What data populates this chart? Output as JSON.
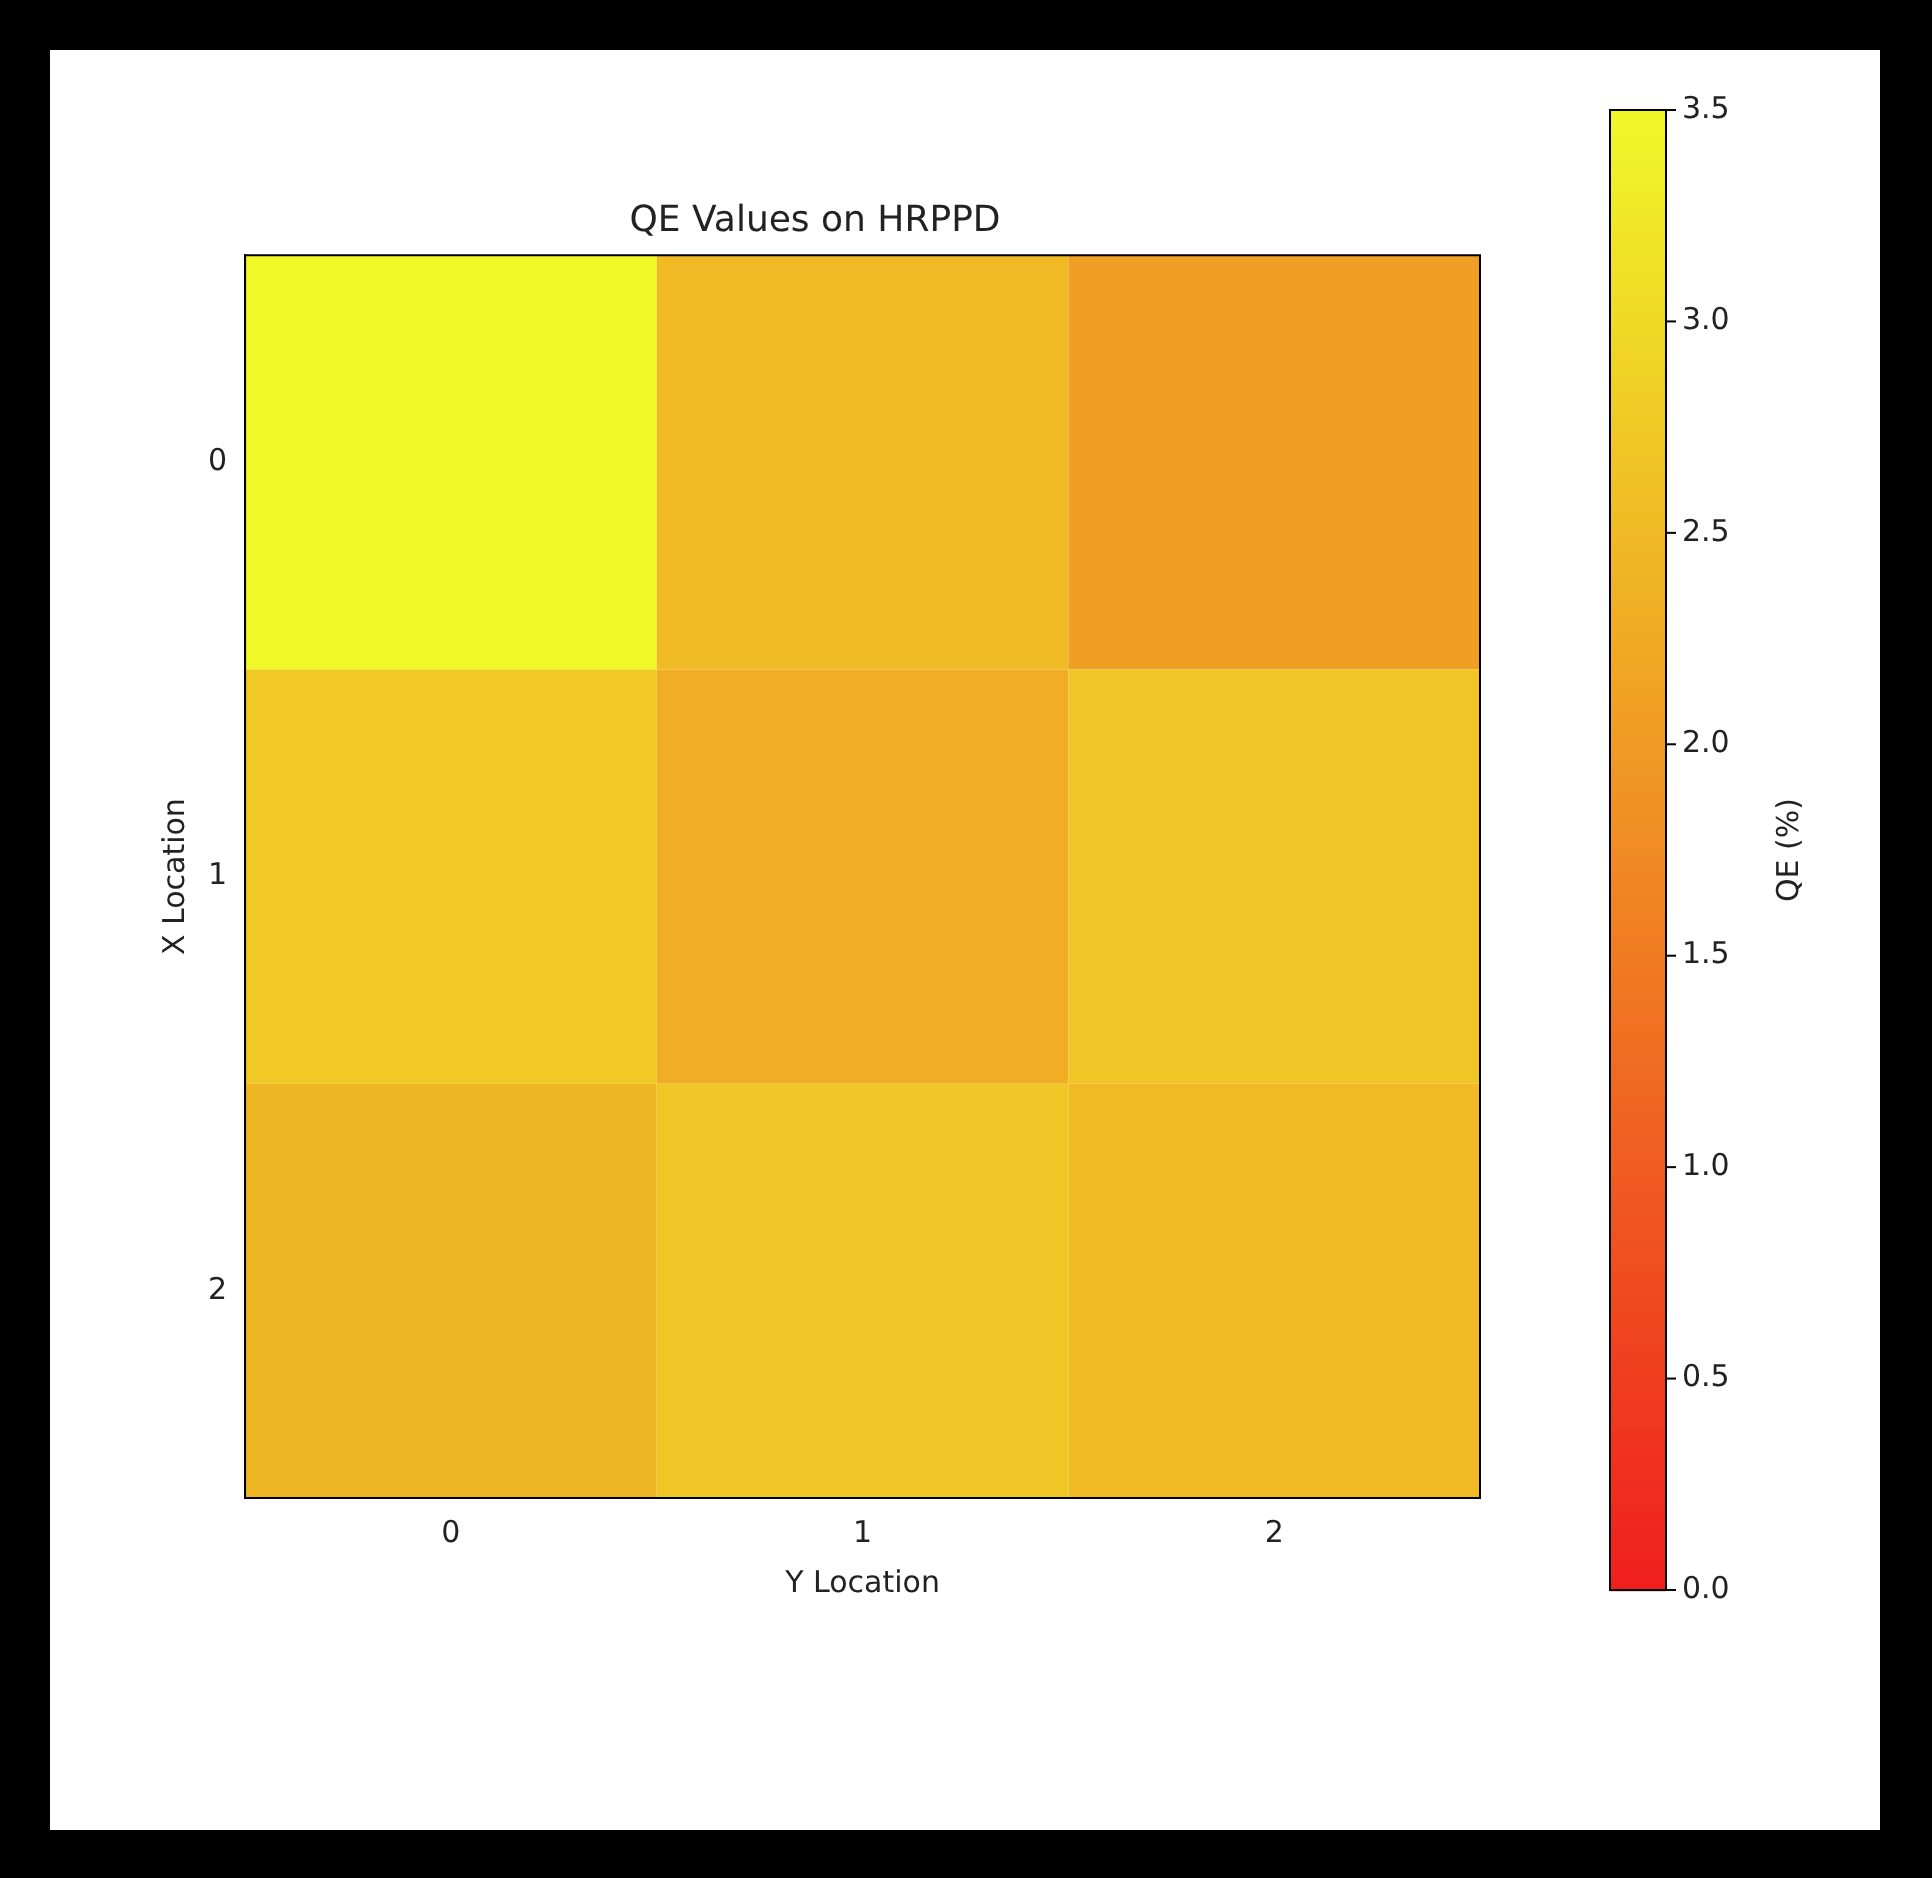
{
  "chart_data": {
    "type": "heatmap",
    "title": "QE Values on HRPPD",
    "xlabel": "Y Location",
    "ylabel": "X Location",
    "clabel": "QE (%)",
    "categories": [
      "0",
      "1",
      "2"
    ],
    "y_categories": [
      "0",
      "1",
      "2"
    ],
    "cells": [
      [
        3.5,
        2.5,
        2.05
      ],
      [
        2.75,
        2.3,
        2.7
      ],
      [
        2.45,
        2.7,
        2.5
      ]
    ],
    "clim": [
      0,
      3.5
    ],
    "cticks": [
      {
        "value": 0,
        "label": "0.0"
      },
      {
        "value": 0.5,
        "label": "0.5"
      },
      {
        "value": 1,
        "label": "1.0"
      },
      {
        "value": 1.5,
        "label": "1.5"
      },
      {
        "value": 2,
        "label": "2.0"
      },
      {
        "value": 2.5,
        "label": "2.5"
      },
      {
        "value": 3,
        "label": "3.0"
      },
      {
        "value": 3.5,
        "label": "3.5"
      }
    ]
  }
}
